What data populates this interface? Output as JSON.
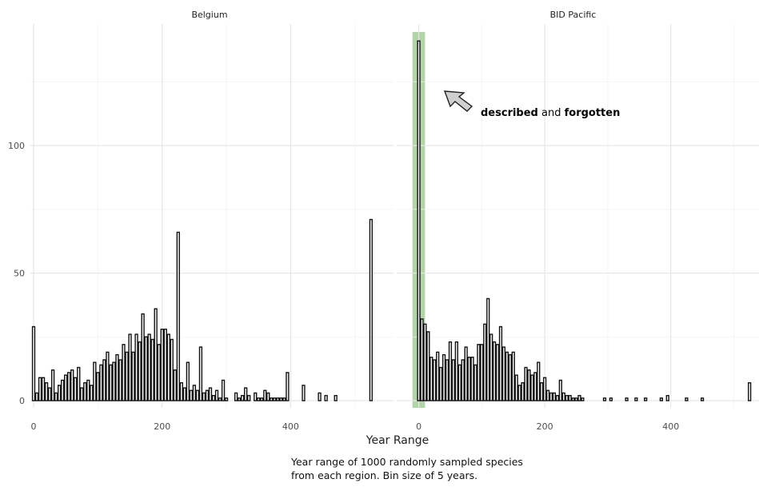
{
  "chart_data": {
    "type": "bar",
    "xlabel": "Year Range",
    "caption": "Year range of 1000 randomly sampled species from each region.  Bin size of 5 years.",
    "y_ticks": [
      0,
      50,
      100
    ],
    "x_ticks": [
      0,
      200,
      400
    ],
    "ylim": [
      0,
      145
    ],
    "bin_width": 5,
    "grid": true,
    "facets": [
      {
        "title": "Belgium",
        "xlim": [
          -5,
          560
        ],
        "x": [
          0,
          5,
          10,
          15,
          20,
          25,
          30,
          35,
          40,
          45,
          50,
          55,
          60,
          65,
          70,
          75,
          80,
          85,
          90,
          95,
          100,
          105,
          110,
          115,
          120,
          125,
          130,
          135,
          140,
          145,
          150,
          155,
          160,
          165,
          170,
          175,
          180,
          185,
          190,
          195,
          200,
          205,
          210,
          215,
          220,
          225,
          230,
          235,
          240,
          245,
          250,
          255,
          260,
          265,
          270,
          275,
          280,
          285,
          290,
          295,
          300,
          315,
          320,
          325,
          330,
          335,
          345,
          350,
          355,
          360,
          365,
          370,
          375,
          380,
          385,
          390,
          395,
          420,
          445,
          455,
          470,
          525
        ],
        "values": [
          29,
          3,
          9,
          9,
          7,
          5,
          12,
          3,
          6,
          8,
          10,
          11,
          12,
          9,
          13,
          5,
          7,
          8,
          6,
          15,
          11,
          14,
          16,
          19,
          14,
          15,
          18,
          16,
          22,
          19,
          26,
          19,
          26,
          23,
          34,
          25,
          26,
          24,
          36,
          22,
          28,
          28,
          26,
          24,
          12,
          66,
          7,
          5,
          15,
          4,
          6,
          4,
          21,
          3,
          4,
          5,
          2,
          4,
          1,
          8,
          1,
          3,
          1,
          2,
          5,
          2,
          3,
          1,
          1,
          4,
          3,
          1,
          1,
          1,
          1,
          1,
          11,
          6,
          3,
          2,
          2,
          71
        ]
      },
      {
        "title": "BID Pacific",
        "xlim": [
          -35,
          540
        ],
        "x": [
          0,
          5,
          10,
          15,
          20,
          25,
          30,
          35,
          40,
          45,
          50,
          55,
          60,
          65,
          70,
          75,
          80,
          85,
          90,
          95,
          100,
          105,
          110,
          115,
          120,
          125,
          130,
          135,
          140,
          145,
          150,
          155,
          160,
          165,
          170,
          175,
          180,
          185,
          190,
          195,
          200,
          205,
          210,
          215,
          220,
          225,
          230,
          235,
          240,
          245,
          250,
          255,
          260,
          295,
          305,
          330,
          345,
          360,
          385,
          395,
          425,
          450,
          525
        ],
        "values": [
          141,
          32,
          30,
          27,
          17,
          16,
          19,
          13,
          18,
          16,
          23,
          16,
          23,
          14,
          16,
          21,
          17,
          17,
          14,
          22,
          22,
          30,
          40,
          26,
          23,
          22,
          29,
          21,
          19,
          18,
          19,
          10,
          6,
          7,
          13,
          12,
          10,
          11,
          15,
          7,
          9,
          4,
          3,
          3,
          2,
          8,
          3,
          2,
          2,
          1,
          1,
          2,
          1,
          1,
          1,
          1,
          1,
          1,
          1,
          2,
          1,
          1,
          7
        ]
      }
    ],
    "highlight": {
      "facet": "BID Pacific",
      "x_range": [
        -10,
        10
      ],
      "color": "#b3d4a8"
    },
    "annotation": {
      "facet": "BID Pacific",
      "parts": [
        {
          "text": "described",
          "bold": true
        },
        {
          "text": " and ",
          "bold": false
        },
        {
          "text": "forgotten",
          "bold": true
        }
      ]
    }
  }
}
